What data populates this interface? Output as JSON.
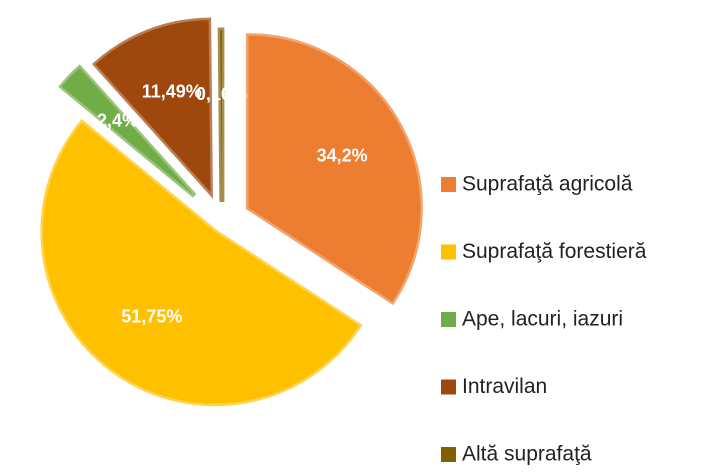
{
  "chart_data": {
    "type": "pie",
    "categories": [
      "Suprafaţă agricolă",
      "Suprafaţă forestieră",
      "Ape, lacuri, iazuri",
      "Intravilan",
      "Altă suprafaţă"
    ],
    "values": [
      34.2,
      51.75,
      2.4,
      11.49,
      0.16
    ],
    "value_labels": [
      "34,2%",
      "51,75%",
      "2,4%",
      "11,49%",
      "0,16%"
    ],
    "colors": [
      "#ED7D31",
      "#FFC000",
      "#70AD47",
      "#9E480E",
      "#806000"
    ],
    "legend": "right"
  }
}
